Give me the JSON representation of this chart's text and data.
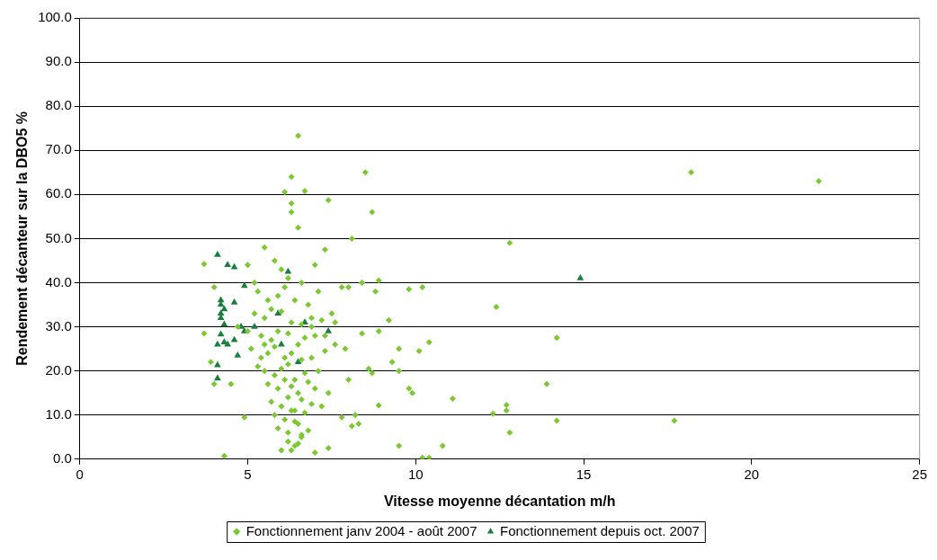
{
  "chart_data": {
    "type": "scatter",
    "xlabel": "Vitesse moyenne décantation m/h",
    "ylabel": "Rendement décanteur sur la DBO5 %",
    "xlim": [
      0,
      25
    ],
    "xticks": [
      0,
      5,
      10,
      15,
      20,
      25
    ],
    "ylim": [
      0,
      100
    ],
    "yticks": [
      {
        "value": 0,
        "label": "0.0"
      },
      {
        "value": 10,
        "label": "10.0"
      },
      {
        "value": 20,
        "label": "20.0"
      },
      {
        "value": 30,
        "label": "30.0"
      },
      {
        "value": 40,
        "label": "40.0"
      },
      {
        "value": 50,
        "label": "50.0"
      },
      {
        "value": 60,
        "label": "60.0"
      },
      {
        "value": 70,
        "label": "70.0"
      },
      {
        "value": 80,
        "label": "80.0"
      },
      {
        "value": 90,
        "label": "90.0"
      },
      {
        "value": 100,
        "label": "100.0"
      }
    ],
    "grid": "y",
    "legend": "bottom",
    "series": [
      {
        "name": "Fonctionnement janv 2004 - août 2007",
        "color": "#7cc832",
        "marker": "diamond",
        "x": [
          6.5,
          6.3,
          6.1,
          6.3,
          6.3,
          6.5,
          6.7,
          7.4,
          8.1,
          8.5,
          8.7,
          12.8,
          18.2,
          22.0,
          12.4,
          14.2,
          13.9,
          12.7,
          12.7,
          12.3,
          12.8,
          14.2,
          17.7,
          10.2,
          10.4,
          10.8,
          9.5,
          11.1,
          4.3,
          3.7,
          3.7,
          3.9,
          4.0,
          4.0,
          4.9,
          4.5,
          7.8,
          8.0,
          8.4,
          8.9,
          8.8,
          9.8,
          10.2,
          9.2,
          8.4,
          8.9,
          9.5,
          10.4,
          10.1,
          9.3,
          9.5,
          8.6,
          8.7,
          9.8,
          9.9,
          8.9,
          8.2,
          8.1,
          8.3,
          7.4,
          7.8,
          8.0,
          7.9,
          7.6,
          5.5,
          5.8,
          6.0,
          6.2,
          6.6,
          7.0,
          7.3,
          5.3,
          5.6,
          5.9,
          6.1,
          6.4,
          6.8,
          7.1,
          5.2,
          5.5,
          5.7,
          6.0,
          6.3,
          6.6,
          6.9,
          7.2,
          7.5,
          5.4,
          5.7,
          5.9,
          6.2,
          6.5,
          6.7,
          7.0,
          5.1,
          5.4,
          5.6,
          5.8,
          6.1,
          6.3,
          6.6,
          6.9,
          7.3,
          5.3,
          5.5,
          5.8,
          6.0,
          6.2,
          6.4,
          6.7,
          7.1,
          5.6,
          5.9,
          6.1,
          6.3,
          6.5,
          6.8,
          7.0,
          7.4,
          5.7,
          6.0,
          6.2,
          6.4,
          6.6,
          6.9,
          5.8,
          6.1,
          6.3,
          6.5,
          6.7,
          7.2,
          5.9,
          6.2,
          6.4,
          6.6,
          6.2,
          6.4,
          6.6,
          6.8,
          6.0,
          6.3,
          6.5,
          7.0,
          5.0,
          5.2,
          4.7,
          5.0,
          5.5,
          6.9,
          7.3,
          7.6
        ],
        "values": [
          73.3,
          64,
          60.5,
          58,
          56,
          52.5,
          60.8,
          58.7,
          50,
          65,
          56,
          49,
          65,
          63,
          34.5,
          27.5,
          17,
          12.3,
          11,
          10.3,
          6,
          8.7,
          8.7,
          0.3,
          0.3,
          3,
          3,
          13.7,
          0.7,
          44.2,
          28.5,
          22,
          39,
          17,
          9.5,
          17,
          39,
          39,
          40,
          40.5,
          38,
          38.5,
          39,
          31.5,
          28.5,
          29,
          25,
          26.5,
          24.5,
          22,
          20,
          20.5,
          19.5,
          16,
          15,
          12.2,
          10,
          7.5,
          8,
          2.5,
          9.5,
          18,
          25,
          31,
          48,
          45,
          43,
          41,
          40,
          44,
          47.5,
          38,
          36,
          37,
          39,
          36,
          35,
          38,
          33,
          32,
          34,
          33.5,
          31,
          30.5,
          32,
          31.5,
          33,
          28,
          27,
          29,
          28.5,
          26,
          27.5,
          28,
          25,
          23,
          24,
          25.5,
          23,
          24,
          22.5,
          23,
          24.5,
          21,
          20,
          19,
          20.5,
          21.5,
          18,
          19.5,
          20,
          17,
          16,
          18,
          16.5,
          15,
          17.5,
          16,
          15,
          13,
          12,
          14,
          11,
          13.5,
          12.5,
          10,
          9,
          11,
          8,
          10.5,
          12,
          7,
          6,
          8.5,
          5,
          4,
          3,
          5.5,
          6.5,
          2,
          2,
          3.5,
          1.5,
          44,
          40,
          30,
          29,
          26,
          30,
          28,
          26
        ]
      },
      {
        "name": "Fonctionnement depuis oct. 2007",
        "color": "#1a7f3c",
        "marker": "triangle",
        "x": [
          4.1,
          4.4,
          4.6,
          4.9,
          4.2,
          4.2,
          4.3,
          4.6,
          4.2,
          4.2,
          4.3,
          4.8,
          4.9,
          5.2,
          4.2,
          4.1,
          4.3,
          4.4,
          4.6,
          4.7,
          4.1,
          4.1,
          5.9,
          6.0,
          6.2,
          6.5,
          6.7,
          7.4,
          14.9
        ],
        "values": [
          46.3,
          44,
          43.5,
          39.3,
          36,
          35,
          34,
          35.5,
          33,
          32,
          30.5,
          30,
          29,
          30,
          28.3,
          26,
          26.5,
          26,
          27,
          23.5,
          21.3,
          18.3,
          33,
          26,
          42.5,
          22,
          31,
          29,
          41
        ]
      }
    ]
  }
}
